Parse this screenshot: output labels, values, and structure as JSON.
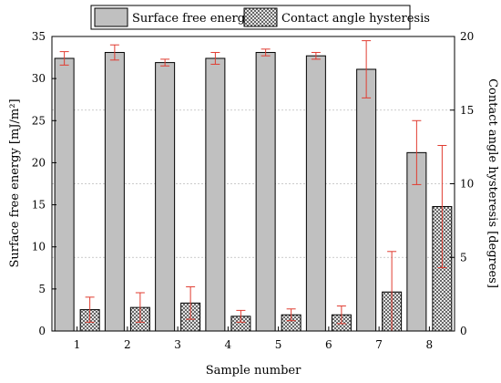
{
  "chart_data": {
    "type": "bar",
    "title": "",
    "xlabel": "Sample number",
    "ylabel_left": "Surface free energy [mJ/m²]",
    "ylabel_right": "Contact angle hysteresis [degrees]",
    "ylim_left": [
      0,
      35
    ],
    "ylim_right": [
      0,
      20
    ],
    "yticks_left": [
      "0",
      "5",
      "10",
      "15",
      "20",
      "25",
      "30",
      "35"
    ],
    "yticks_right": [
      "0",
      "5",
      "10",
      "15",
      "20"
    ],
    "grid": true,
    "legend_position": "top",
    "categories": [
      "1",
      "2",
      "3",
      "4",
      "5",
      "6",
      "7",
      "8"
    ],
    "series": [
      {
        "name": "Surface free energy",
        "axis": "left",
        "pattern": "solid-gray",
        "color": "#c0c0c0",
        "values": [
          32.4,
          33.1,
          31.9,
          32.4,
          33.1,
          32.7,
          31.1,
          21.2
        ],
        "errors": [
          0.8,
          0.9,
          0.4,
          0.7,
          0.4,
          0.4,
          3.4,
          3.8
        ]
      },
      {
        "name": "Contact angle hysteresis",
        "axis": "right",
        "pattern": "crosshatch",
        "color": "#ffffff",
        "values": [
          1.45,
          1.6,
          1.9,
          1.0,
          1.1,
          1.1,
          2.65,
          8.45
        ],
        "errors": [
          0.85,
          1.0,
          1.1,
          0.4,
          0.4,
          0.6,
          2.75,
          4.15
        ]
      }
    ],
    "error_bar_color": "#e03c31"
  }
}
